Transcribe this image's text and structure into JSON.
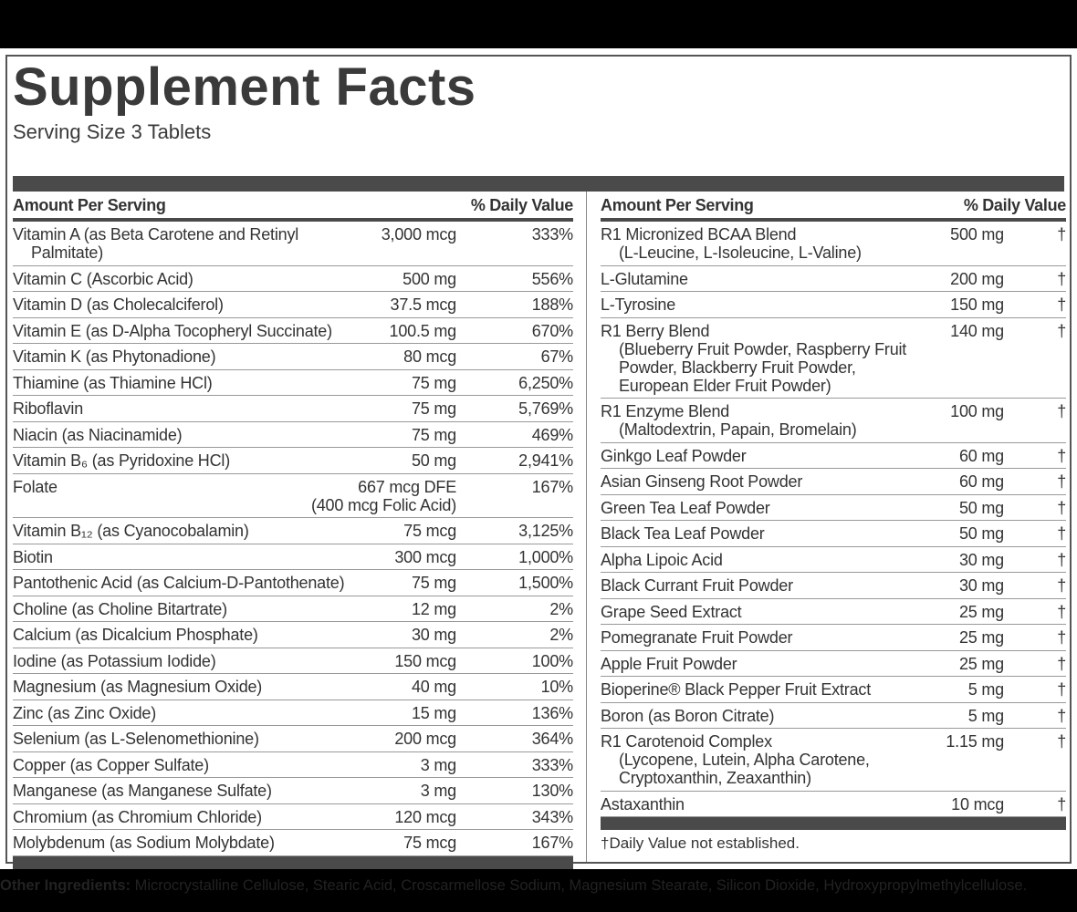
{
  "title": "Supplement Facts",
  "serving_size": "Serving Size 3 Tablets",
  "header": {
    "amount": "Amount Per Serving",
    "dv": "% Daily Value"
  },
  "left_rows": [
    {
      "name": "Vitamin A (as Beta Carotene and Retinyl",
      "name2": "Palmitate)",
      "amount": "3,000 mcg",
      "dv": "333%"
    },
    {
      "name": "Vitamin C (Ascorbic Acid)",
      "amount": "500 mg",
      "dv": "556%"
    },
    {
      "name": "Vitamin D (as Cholecalciferol)",
      "amount": "37.5 mcg",
      "dv": "188%"
    },
    {
      "name": "Vitamin E (as D-Alpha Tocopheryl Succinate)",
      "amount": "100.5 mg",
      "dv": "670%"
    },
    {
      "name": "Vitamin K (as Phytonadione)",
      "amount": "80 mcg",
      "dv": "67%"
    },
    {
      "name": "Thiamine (as Thiamine HCl)",
      "amount": "75 mg",
      "dv": "6,250%"
    },
    {
      "name": "Riboflavin",
      "amount": "75 mg",
      "dv": "5,769%"
    },
    {
      "name": "Niacin (as Niacinamide)",
      "amount": "75 mg",
      "dv": "469%"
    },
    {
      "name": "Vitamin B₆ (as Pyridoxine HCl)",
      "amount": "50 mg",
      "dv": "2,941%"
    },
    {
      "name": "Folate",
      "amount": "667 mcg DFE",
      "amount2": "(400 mcg Folic Acid)",
      "dv": "167%"
    },
    {
      "name": "Vitamin B₁₂ (as Cyanocobalamin)",
      "amount": "75 mcg",
      "dv": "3,125%"
    },
    {
      "name": "Biotin",
      "amount": "300 mcg",
      "dv": "1,000%"
    },
    {
      "name": "Pantothenic Acid (as Calcium-D-Pantothenate)",
      "amount": "75 mg",
      "dv": "1,500%"
    },
    {
      "name": "Choline (as Choline Bitartrate)",
      "amount": "12 mg",
      "dv": "2%"
    },
    {
      "name": "Calcium (as Dicalcium Phosphate)",
      "amount": "30 mg",
      "dv": "2%"
    },
    {
      "name": "Iodine (as Potassium Iodide)",
      "amount": "150 mcg",
      "dv": "100%"
    },
    {
      "name": "Magnesium (as Magnesium Oxide)",
      "amount": "40 mg",
      "dv": "10%"
    },
    {
      "name": "Zinc (as Zinc Oxide)",
      "amount": "15 mg",
      "dv": "136%"
    },
    {
      "name": "Selenium (as L-Selenomethionine)",
      "amount": "200 mcg",
      "dv": "364%"
    },
    {
      "name": "Copper (as Copper Sulfate)",
      "amount": "3 mg",
      "dv": "333%"
    },
    {
      "name": "Manganese (as Manganese Sulfate)",
      "amount": "3 mg",
      "dv": "130%"
    },
    {
      "name": "Chromium (as Chromium Chloride)",
      "amount": "120 mcg",
      "dv": "343%"
    },
    {
      "name": "Molybdenum (as Sodium Molybdate)",
      "amount": "75 mcg",
      "dv": "167%"
    }
  ],
  "right_rows": [
    {
      "name": "R1 Micronized BCAA Blend",
      "name2": "(L-Leucine, L-Isoleucine, L-Valine)",
      "amount": "500 mg",
      "dv": "†"
    },
    {
      "name": "L-Glutamine",
      "amount": "200 mg",
      "dv": "†"
    },
    {
      "name": "L-Tyrosine",
      "amount": "150 mg",
      "dv": "†"
    },
    {
      "name": "R1 Berry Blend",
      "name2": "(Blueberry Fruit Powder, Raspberry Fruit Powder, Blackberry Fruit Powder, European Elder Fruit Powder)",
      "amount": "140 mg",
      "dv": "†"
    },
    {
      "name": "R1 Enzyme Blend",
      "name2": "(Maltodextrin, Papain, Bromelain)",
      "amount": "100 mg",
      "dv": "†"
    },
    {
      "name": "Ginkgo Leaf Powder",
      "amount": "60 mg",
      "dv": "†"
    },
    {
      "name": "Asian Ginseng Root Powder",
      "amount": "60 mg",
      "dv": "†"
    },
    {
      "name": "Green Tea Leaf Powder",
      "amount": "50 mg",
      "dv": "†"
    },
    {
      "name": "Black Tea Leaf Powder",
      "amount": "50 mg",
      "dv": "†"
    },
    {
      "name": "Alpha Lipoic Acid",
      "amount": "30 mg",
      "dv": "†"
    },
    {
      "name": "Black Currant Fruit Powder",
      "amount": "30 mg",
      "dv": "†"
    },
    {
      "name": "Grape Seed Extract",
      "amount": "25 mg",
      "dv": "†"
    },
    {
      "name": "Pomegranate Fruit Powder",
      "amount": "25 mg",
      "dv": "†"
    },
    {
      "name": "Apple Fruit Powder",
      "amount": "25 mg",
      "dv": "†"
    },
    {
      "name": "Bioperine® Black Pepper Fruit Extract",
      "amount": "5 mg",
      "dv": "†"
    },
    {
      "name": "Boron (as Boron Citrate)",
      "amount": "5 mg",
      "dv": "†"
    },
    {
      "name": "R1 Carotenoid Complex",
      "name2": "(Lycopene, Lutein, Alpha Carotene, Cryptoxanthin, Zeaxanthin)",
      "amount": "1.15 mg",
      "dv": "†"
    },
    {
      "name": "Astaxanthin",
      "amount": "10 mcg",
      "dv": "†"
    }
  ],
  "footnote": "†Daily Value not established.",
  "other_ingredients": {
    "label": "Other Ingredients:",
    "text": " Microcrystalline Cellulose, Stearic Acid, Croscarmellose Sodium, Magnesium Stearate, Silicon Dioxide, Hydroxypropylmethylcellulose."
  }
}
